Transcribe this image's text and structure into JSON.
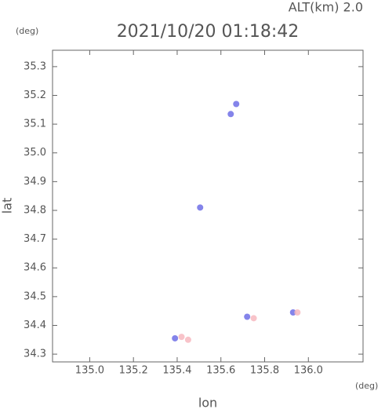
{
  "chart_data": {
    "type": "scatter",
    "title": "2021/10/20 01:18:42",
    "subtitle": "ALT(km) 2.0",
    "y_unit": "(deg)",
    "x_unit": "(deg)",
    "xlabel": "lon",
    "ylabel": "lat",
    "xlim": [
      134.83,
      136.25
    ],
    "ylim": [
      34.273,
      35.357
    ],
    "xticks": [
      {
        "value": 135.0,
        "label": "135.0"
      },
      135.2,
      135.4,
      135.6,
      135.8,
      {
        "value": 136.0,
        "label": "136.0"
      }
    ],
    "yticks": [
      34.3,
      34.4,
      34.5,
      34.6,
      34.7,
      34.8,
      34.9,
      {
        "value": 35.0,
        "label": "35.0"
      },
      35.1,
      35.2,
      35.3
    ],
    "series": [
      {
        "color": "#6f6fe6",
        "x": [
          135.67,
          135.645,
          135.505,
          135.39,
          135.72,
          135.93
        ],
        "values": [
          35.17,
          35.135,
          34.81,
          34.355,
          34.43,
          34.445
        ]
      },
      {
        "color": "#f7b8c0",
        "x": [
          135.42,
          135.45,
          135.75,
          135.95
        ],
        "values": [
          34.36,
          34.35,
          34.425,
          34.445
        ]
      }
    ]
  }
}
